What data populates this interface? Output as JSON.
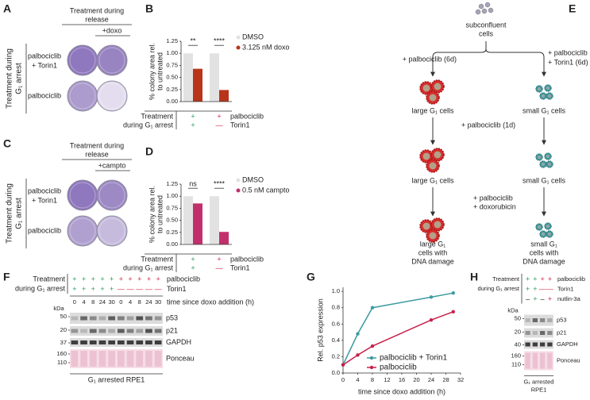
{
  "panels": {
    "A": {
      "label": "A",
      "header": [
        "Treatment during",
        "release"
      ],
      "drug": "+doxo",
      "rows": [
        [
          "palbociclib",
          "+ Torin1"
        ],
        [
          "palbociclib"
        ]
      ],
      "side": [
        "Treatment during",
        "G₁ arrest"
      ]
    },
    "C": {
      "label": "C",
      "header": [
        "Treatment during",
        "release"
      ],
      "drug": "+campto",
      "rows": [
        [
          "palbociclib",
          "+ Torin1"
        ],
        [
          "palbociclib"
        ]
      ],
      "side": [
        "Treatment during",
        "G₁ arrest"
      ]
    },
    "E": {
      "label": "E",
      "start": [
        "subconfluent",
        "cells"
      ],
      "left_treatment": "+ palbociclib (6d)",
      "right_treatment": [
        "+ palbociclib",
        "+ Torin1 (6d)"
      ],
      "large1": "large G₁ cells",
      "small1": "small G₁ cells",
      "middle_treatment": "+ palbociclib (1d)",
      "large2": "large G₁ cells",
      "small2": "small G₁ cells",
      "damage_treatment": [
        "+ palbociclib",
        "+ doxorubicin"
      ],
      "large3": [
        "large G₁",
        "cells with",
        "DNA damage"
      ],
      "small3": [
        "small G₁",
        "cells with",
        "DNA damage"
      ]
    },
    "F": {
      "label": "F",
      "treatment": [
        "Treatment",
        "during G₁ arrest"
      ],
      "lane_colors": [
        "#2e9b5f",
        "#2e9b5f",
        "#2e9b5f",
        "#2e9b5f",
        "#2e9b5f",
        "#d42a4a",
        "#d42a4a",
        "#d42a4a",
        "#d42a4a",
        "#d42a4a"
      ],
      "rows": [
        {
          "signs": [
            "+",
            "+",
            "+",
            "+",
            "+",
            "+",
            "+",
            "+",
            "+",
            "+"
          ],
          "name": "palbociclib"
        },
        {
          "signs": [
            "+",
            "+",
            "+",
            "+",
            "+",
            "—",
            "—",
            "—",
            "—",
            "—"
          ],
          "name": "Torin1"
        }
      ],
      "times": [
        0,
        4,
        8,
        24,
        30,
        0,
        4,
        8,
        24,
        30
      ],
      "time_label": "time since doxo addition (h)",
      "kda": "kDa",
      "markers": [
        50,
        20,
        37,
        160,
        110
      ],
      "blots": [
        "p53",
        "p21",
        "GAPDH",
        "Ponceau"
      ],
      "cells": "G₁ arrested RPE1"
    },
    "H": {
      "label": "H",
      "treatment": [
        "Treatment",
        "during G₁ arrest"
      ],
      "lane_colors": [
        "#2e9b5f",
        "#2e9b5f",
        "#d42a4a",
        "#d42a4a"
      ],
      "rows": [
        {
          "signs": [
            "+",
            "+",
            "+",
            "+"
          ],
          "name": "palbociclib"
        },
        {
          "signs": [
            "+",
            "+",
            "—",
            "—"
          ],
          "name": "Torin1"
        },
        {
          "signs": [
            "–",
            "+",
            "–",
            "+"
          ],
          "name": "nutlin-3a"
        }
      ],
      "kda": "kDa",
      "markers": [
        50,
        20,
        40,
        160,
        110
      ],
      "blots": [
        "p53",
        "p21",
        "GAPDH",
        "Ponceau"
      ],
      "cells": [
        "G₁ arrested",
        "RPE1"
      ]
    }
  },
  "chart_data": [
    {
      "type": "bar",
      "label": "B",
      "ylabel": [
        "% colony area rel.",
        "to untreated"
      ],
      "ylim": [
        0,
        1.25
      ],
      "yticks": [
        {
          "value": 0,
          "label": "0.00"
        },
        {
          "value": 0.25,
          "label": "0.25"
        },
        {
          "value": 0.5,
          "label": "0.50"
        },
        {
          "value": 0.75,
          "label": "0.75"
        },
        {
          "value": 1,
          "label": "1.00"
        },
        {
          "value": 1.25,
          "label": "1.25"
        }
      ],
      "series": [
        {
          "name": "DMSO",
          "color": "#e2e2e2",
          "values": [
            1.0,
            1.0
          ]
        },
        {
          "name": "3.125 nM doxo",
          "color": "#b8351a",
          "values": [
            0.68,
            0.24
          ]
        }
      ],
      "significance": [
        "**",
        "****"
      ],
      "table": {
        "title": [
          "Treatment",
          "during G₁ arrest"
        ],
        "colors": [
          "#2e9b5f",
          "#d42a4a"
        ],
        "rows": [
          {
            "signs": [
              "+",
              "+"
            ],
            "name": "palbociclib"
          },
          {
            "signs": [
              "+",
              "—"
            ],
            "name": "Torin1"
          }
        ]
      }
    },
    {
      "type": "bar",
      "label": "D",
      "ylabel": [
        "% colony area rel.",
        "to untreated"
      ],
      "ylim": [
        0,
        1.25
      ],
      "yticks": [
        {
          "value": 0,
          "label": "0.00"
        },
        {
          "value": 0.25,
          "label": "0.25"
        },
        {
          "value": 0.5,
          "label": "0.50"
        },
        {
          "value": 0.75,
          "label": "0.75"
        },
        {
          "value": 1,
          "label": "1.00"
        },
        {
          "value": 1.25,
          "label": "1.25"
        }
      ],
      "series": [
        {
          "name": "DMSO",
          "color": "#e2e2e2",
          "values": [
            1.0,
            1.0
          ]
        },
        {
          "name": "0.5 nM campto",
          "color": "#c2306c",
          "values": [
            0.85,
            0.26
          ]
        }
      ],
      "significance": [
        "ns",
        "****"
      ],
      "table": {
        "title": [
          "Treatment",
          "during G₁ arrest"
        ],
        "colors": [
          "#2e9b5f",
          "#d42a4a"
        ],
        "rows": [
          {
            "signs": [
              "+",
              "+"
            ],
            "name": "palbociclib"
          },
          {
            "signs": [
              "+",
              "—"
            ],
            "name": "Torin1"
          }
        ]
      }
    },
    {
      "type": "line",
      "label": "G",
      "xlabel": "time since doxo addition (h)",
      "ylabel": "Rel. p53 expression",
      "x": [
        0,
        4,
        8,
        24,
        30
      ],
      "xlim": [
        0,
        32
      ],
      "xticks": [
        0,
        4,
        8,
        12,
        16,
        20,
        24,
        28,
        32
      ],
      "ylim": [
        0,
        1.05
      ],
      "yticks": [
        {
          "value": 0,
          "label": "0.0"
        },
        {
          "value": 0.2,
          "label": "0.2"
        },
        {
          "value": 0.4,
          "label": "0.4"
        },
        {
          "value": 0.6,
          "label": "0.6"
        },
        {
          "value": 0.8,
          "label": "0.8"
        },
        {
          "value": 1,
          "label": "1.0"
        }
      ],
      "series": [
        {
          "name": "palbociclib + Torin1",
          "color": "#3d9aa0",
          "values": [
            0.1,
            0.48,
            0.8,
            0.93,
            0.98
          ]
        },
        {
          "name": "palbociclib",
          "color": "#c8204a",
          "values": [
            0.1,
            0.22,
            0.33,
            0.65,
            0.75
          ]
        }
      ]
    }
  ]
}
